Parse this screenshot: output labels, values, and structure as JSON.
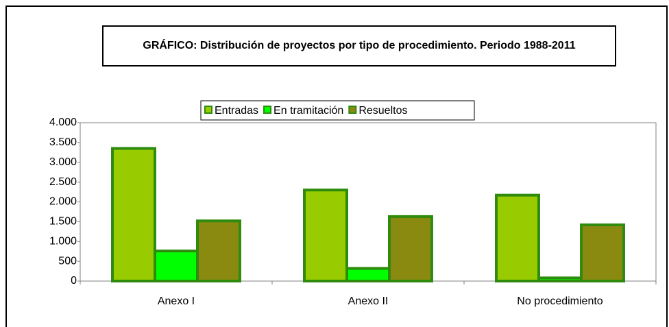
{
  "chart_data": {
    "type": "bar",
    "title": "GRÁFICO: Distribución de proyectos por tipo de procedimiento. Periodo 1988-2011",
    "categories": [
      "Anexo I",
      "Anexo II",
      "No procedimiento"
    ],
    "series": [
      {
        "name": "Entradas",
        "color": "#99cc00",
        "values": [
          3350,
          2300,
          2170
        ]
      },
      {
        "name": "En tramitación",
        "color": "#00ff00",
        "values": [
          760,
          320,
          80
        ]
      },
      {
        "name": "Resueltos",
        "color": "#8a8a10",
        "values": [
          1520,
          1630,
          1420
        ]
      }
    ],
    "ylim": [
      0,
      4000
    ],
    "yticks": [
      0,
      500,
      {
        "value": 1000,
        "label": "1.000"
      },
      {
        "value": 1500,
        "label": "1.500"
      },
      {
        "value": 2000,
        "label": "2.000"
      },
      {
        "value": 2500,
        "label": "2.500"
      },
      {
        "value": 3000,
        "label": "3.000"
      },
      {
        "value": 3500,
        "label": "3.500"
      },
      {
        "value": 4000,
        "label": "4.000"
      }
    ],
    "legend": "top"
  }
}
